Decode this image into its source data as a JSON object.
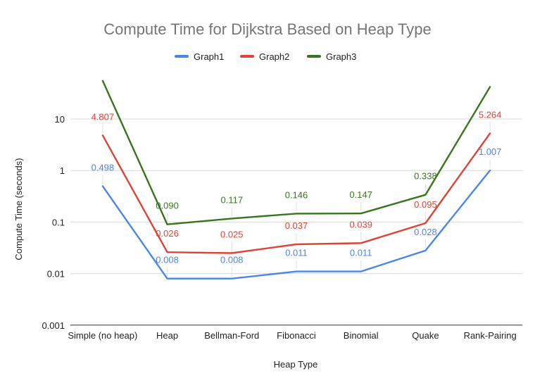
{
  "chart_data": {
    "type": "line",
    "title": "Compute Time for Dijkstra Based on Heap Type",
    "xlabel": "Heap Type",
    "ylabel": "Compute Time (seconds)",
    "y_scale": "log",
    "ylim": [
      0.001,
      60
    ],
    "yticks": [
      {
        "value": 0.001,
        "label": "0.001"
      },
      {
        "value": 0.01,
        "label": "0.01"
      },
      {
        "value": 0.1,
        "label": "0.1"
      },
      {
        "value": 1,
        "label": "1"
      },
      {
        "value": 10,
        "label": "10"
      }
    ],
    "grid": true,
    "legend_position": "top",
    "categories": [
      "Simple (no heap)",
      "Heap",
      "Bellman-Ford",
      "Fibonacci",
      "Binomial",
      "Quake",
      "Rank-Pairing"
    ],
    "series": [
      {
        "name": "Graph1",
        "color": "#4a86e8",
        "values": [
          0.498,
          0.008,
          0.008,
          0.011,
          0.011,
          0.028,
          1.007
        ],
        "labels": [
          "0.498",
          "0.008",
          "0.008",
          "0.011",
          "0.011",
          "0.028",
          "1.007"
        ]
      },
      {
        "name": "Graph2",
        "color": "#db4437",
        "values": [
          4.807,
          0.026,
          0.025,
          0.037,
          0.039,
          0.095,
          5.264
        ],
        "labels": [
          "4.807",
          "0.026",
          "0.025",
          "0.037",
          "0.039",
          "0.095",
          "5.264"
        ]
      },
      {
        "name": "Graph3",
        "color": "#38761d",
        "values": [
          55,
          0.09,
          0.117,
          0.146,
          0.147,
          0.338,
          42
        ],
        "labels": [
          "",
          "0.090",
          "0.117",
          "0.146",
          "0.147",
          "0.338",
          ""
        ]
      }
    ]
  }
}
